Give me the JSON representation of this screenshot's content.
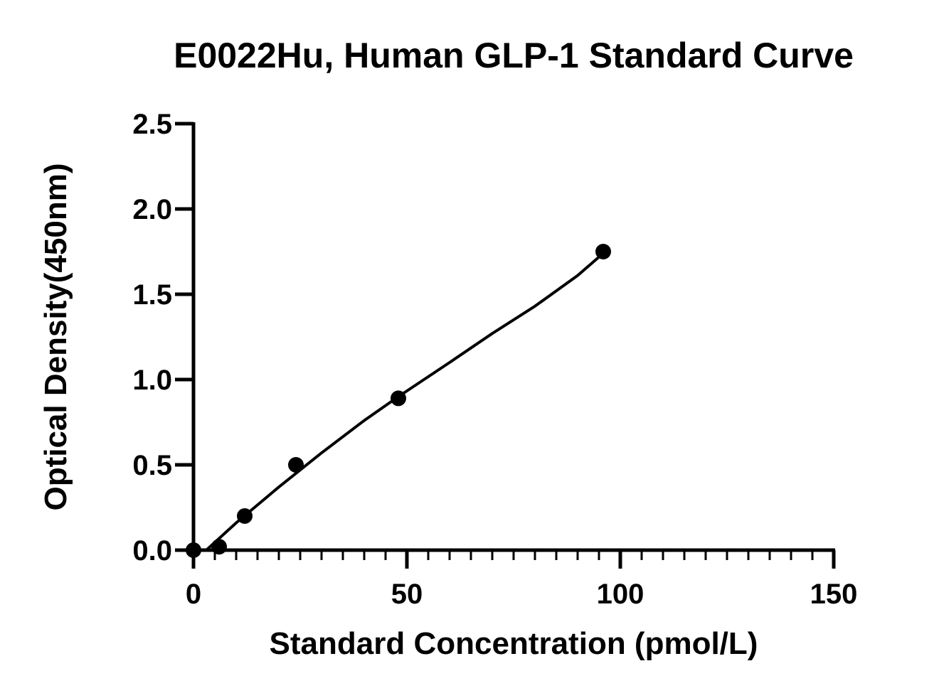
{
  "chart_data": {
    "type": "scatter",
    "title": "E0022Hu, Human GLP-1 Standard Curve",
    "xlabel": "Standard Concentration (pmol/L)",
    "ylabel": "Optical Density(450nm)",
    "xlim": [
      0,
      150
    ],
    "ylim": [
      0,
      2.5
    ],
    "x_ticks": [
      0,
      50,
      100,
      150
    ],
    "x_tick_labels": [
      "0",
      "50",
      "100",
      "150"
    ],
    "x_minor_tick_step": 5,
    "y_ticks": [
      0.0,
      0.5,
      1.0,
      1.5,
      2.0,
      2.5
    ],
    "y_tick_labels": [
      "0.0",
      "0.5",
      "1.0",
      "1.5",
      "2.0",
      "2.5"
    ],
    "grid": false,
    "series": [
      {
        "points": [
          {
            "x": 0,
            "y": 0.0
          },
          {
            "x": 6,
            "y": 0.02
          },
          {
            "x": 12,
            "y": 0.2
          },
          {
            "x": 24,
            "y": 0.5
          },
          {
            "x": 48,
            "y": 0.89
          },
          {
            "x": 96,
            "y": 1.75
          }
        ]
      }
    ],
    "fit_curve": {
      "x": [
        3,
        10,
        20,
        30,
        40,
        48,
        60,
        70,
        80,
        90,
        96
      ],
      "y": [
        0.0,
        0.16,
        0.37,
        0.57,
        0.76,
        0.9,
        1.1,
        1.27,
        1.43,
        1.61,
        1.74
      ]
    },
    "colors": {
      "axis": "#000000",
      "points": "#000000",
      "curve": "#000000",
      "background": "#ffffff"
    }
  }
}
